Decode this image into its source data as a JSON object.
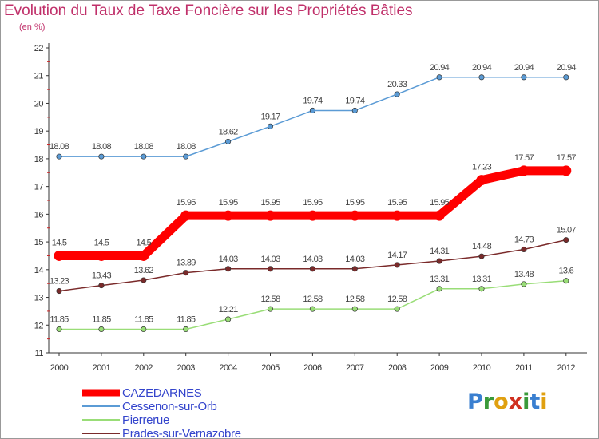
{
  "title": "Evolution du Taux de Taxe Foncière sur les Propriétés Bâties",
  "unit_label": "(en %)",
  "logo": {
    "text": "Proxiti",
    "letters": [
      {
        "ch": "P",
        "color": "#3a7fd0"
      },
      {
        "ch": "r",
        "color": "#3a9a3a"
      },
      {
        "ch": "o",
        "color": "#e0a010"
      },
      {
        "ch": "x",
        "color": "#d03020"
      },
      {
        "ch": "i",
        "color": "#3a9a3a"
      },
      {
        "ch": "t",
        "color": "#3a7fd0"
      },
      {
        "ch": "i",
        "color": "#e0a010"
      }
    ]
  },
  "chart_data": {
    "type": "line",
    "x": [
      "2000",
      "2001",
      "2002",
      "2003",
      "2004",
      "2005",
      "2006",
      "2007",
      "2008",
      "2009",
      "2010",
      "2011",
      "2012"
    ],
    "ylim": [
      11,
      22
    ],
    "yticks": [
      11,
      12,
      13,
      14,
      15,
      16,
      17,
      18,
      19,
      20,
      21,
      22
    ],
    "grid": false,
    "legend_position": "bottom-left",
    "series": [
      {
        "name": "CAZEDARNES",
        "color": "#ff0000",
        "thick": true,
        "values": [
          14.5,
          14.5,
          14.5,
          15.95,
          15.95,
          15.95,
          15.95,
          15.95,
          15.95,
          15.95,
          17.23,
          17.57,
          17.57
        ]
      },
      {
        "name": "Cessenon-sur-Orb",
        "color": "#5b9bd5",
        "thick": false,
        "values": [
          18.08,
          18.08,
          18.08,
          18.08,
          18.62,
          19.17,
          19.74,
          19.74,
          20.33,
          20.94,
          20.94,
          20.94,
          20.94
        ]
      },
      {
        "name": "Pierrerue",
        "color": "#99dd77",
        "thick": false,
        "values": [
          11.85,
          11.85,
          11.85,
          11.85,
          12.21,
          12.58,
          12.58,
          12.58,
          12.58,
          13.31,
          13.31,
          13.48,
          13.6
        ]
      },
      {
        "name": "Prades-sur-Vernazobre",
        "color": "#7a2a2a",
        "thick": false,
        "values": [
          13.23,
          13.43,
          13.62,
          13.89,
          14.03,
          14.03,
          14.03,
          14.03,
          14.17,
          14.31,
          14.48,
          14.73,
          15.07
        ]
      }
    ]
  }
}
